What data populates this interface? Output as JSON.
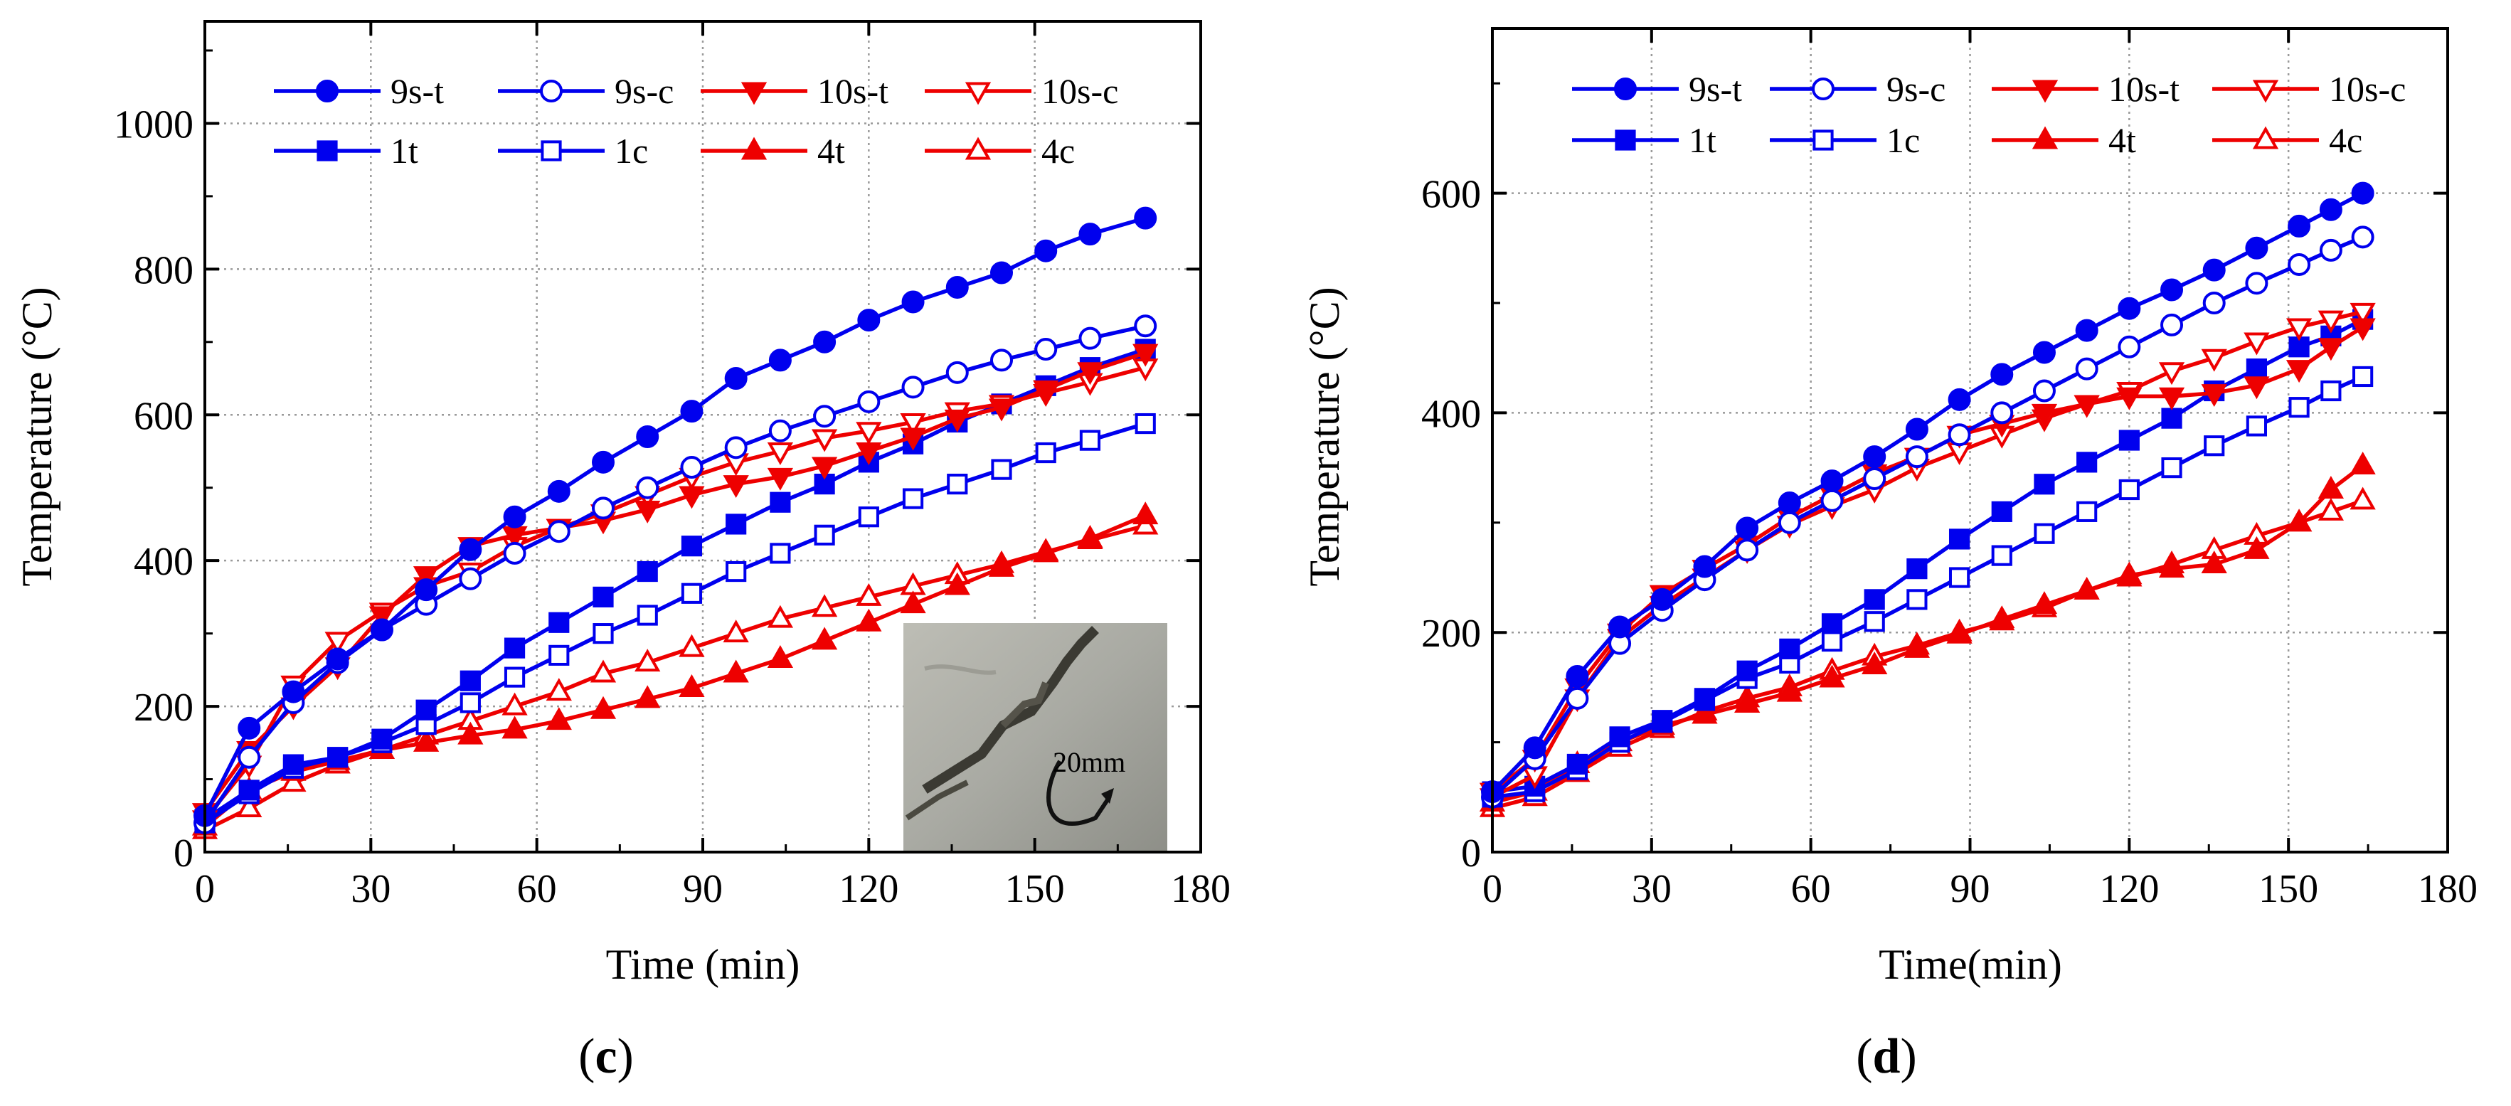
{
  "chart_data": [
    {
      "type": "line",
      "panel_label": "(c)",
      "panel_label_parts": {
        "open": "(",
        "letter": "c",
        "close": ")"
      },
      "xlabel": "Time (min)",
      "ylabel": "Temperature (°C)",
      "xlim": [
        0,
        180
      ],
      "ylim": [
        0,
        1140
      ],
      "xticks": [
        0,
        30,
        60,
        90,
        120,
        150,
        180
      ],
      "yticks": [
        0,
        200,
        400,
        600,
        800,
        1000
      ],
      "grid": true,
      "legend_position": "top",
      "inset_annotation": "20mm",
      "series": [
        {
          "name": "9s-t",
          "color": "#0000ee",
          "marker": "circle",
          "filled": true,
          "x": [
            0,
            8,
            16,
            24,
            32,
            40,
            48,
            56,
            64,
            72,
            80,
            88,
            96,
            104,
            112,
            120,
            128,
            136,
            144,
            152,
            160,
            170
          ],
          "y": [
            50,
            170,
            220,
            265,
            305,
            360,
            415,
            460,
            495,
            535,
            570,
            605,
            650,
            675,
            700,
            730,
            755,
            775,
            795,
            825,
            848,
            870
          ]
        },
        {
          "name": "9s-c",
          "color": "#0000ee",
          "marker": "circle",
          "filled": false,
          "x": [
            0,
            8,
            16,
            24,
            32,
            40,
            48,
            56,
            64,
            72,
            80,
            88,
            96,
            104,
            112,
            120,
            128,
            136,
            144,
            152,
            160,
            170
          ],
          "y": [
            40,
            130,
            205,
            260,
            305,
            340,
            375,
            410,
            440,
            472,
            500,
            528,
            555,
            578,
            598,
            618,
            638,
            658,
            675,
            690,
            705,
            722
          ]
        },
        {
          "name": "10s-t",
          "color": "#ee0000",
          "marker": "triangle-down",
          "filled": true,
          "x": [
            0,
            8,
            16,
            24,
            32,
            40,
            48,
            56,
            64,
            72,
            80,
            88,
            96,
            104,
            112,
            120,
            128,
            136,
            144,
            152,
            160,
            170
          ],
          "y": [
            55,
            140,
            200,
            255,
            325,
            380,
            420,
            435,
            445,
            455,
            470,
            490,
            505,
            515,
            530,
            550,
            570,
            595,
            610,
            635,
            660,
            685
          ]
        },
        {
          "name": "10s-c",
          "color": "#ee0000",
          "marker": "triangle-down",
          "filled": false,
          "x": [
            0,
            8,
            16,
            24,
            32,
            40,
            48,
            56,
            64,
            72,
            80,
            88,
            96,
            104,
            112,
            120,
            128,
            136,
            144,
            152,
            160,
            170
          ],
          "y": [
            45,
            120,
            230,
            290,
            330,
            365,
            385,
            420,
            445,
            465,
            490,
            515,
            535,
            550,
            568,
            578,
            590,
            605,
            615,
            630,
            645,
            665
          ]
        },
        {
          "name": "1t",
          "color": "#0000ee",
          "marker": "square",
          "filled": true,
          "x": [
            0,
            8,
            16,
            24,
            32,
            40,
            48,
            56,
            64,
            72,
            80,
            88,
            96,
            104,
            112,
            120,
            128,
            136,
            144,
            152,
            160,
            170
          ],
          "y": [
            45,
            85,
            120,
            130,
            155,
            195,
            235,
            280,
            315,
            350,
            385,
            420,
            450,
            480,
            505,
            535,
            560,
            590,
            615,
            640,
            665,
            690
          ]
        },
        {
          "name": "1c",
          "color": "#0000ee",
          "marker": "square",
          "filled": false,
          "x": [
            0,
            8,
            16,
            24,
            32,
            40,
            48,
            56,
            64,
            72,
            80,
            88,
            96,
            104,
            112,
            120,
            128,
            136,
            144,
            152,
            160,
            170
          ],
          "y": [
            40,
            80,
            115,
            130,
            150,
            175,
            205,
            240,
            270,
            300,
            325,
            355,
            385,
            410,
            435,
            460,
            485,
            505,
            525,
            548,
            565,
            588
          ]
        },
        {
          "name": "4t",
          "color": "#ee0000",
          "marker": "triangle-up",
          "filled": true,
          "x": [
            0,
            8,
            16,
            24,
            32,
            40,
            48,
            56,
            64,
            72,
            80,
            88,
            96,
            104,
            112,
            120,
            128,
            136,
            144,
            152,
            160,
            170
          ],
          "y": [
            35,
            85,
            110,
            125,
            140,
            150,
            160,
            168,
            180,
            195,
            210,
            225,
            245,
            265,
            290,
            315,
            340,
            365,
            390,
            410,
            430,
            462
          ]
        },
        {
          "name": "4c",
          "color": "#ee0000",
          "marker": "triangle-up",
          "filled": false,
          "x": [
            0,
            8,
            16,
            24,
            32,
            40,
            48,
            56,
            64,
            72,
            80,
            88,
            96,
            104,
            112,
            120,
            128,
            136,
            144,
            152,
            160,
            170
          ],
          "y": [
            30,
            60,
            95,
            120,
            140,
            160,
            180,
            200,
            220,
            245,
            260,
            280,
            300,
            320,
            335,
            350,
            365,
            380,
            395,
            412,
            428,
            448
          ]
        }
      ]
    },
    {
      "type": "line",
      "panel_label": "(d)",
      "panel_label_parts": {
        "open": "(",
        "letter": "d",
        "close": ")"
      },
      "xlabel": "Time(min)",
      "ylabel": "Temperature (°C)",
      "xlim": [
        0,
        180
      ],
      "ylim": [
        0,
        750
      ],
      "xticks": [
        0,
        30,
        60,
        90,
        120,
        150,
        180
      ],
      "yticks": [
        0,
        200,
        400,
        600
      ],
      "grid": true,
      "legend_position": "top",
      "series": [
        {
          "name": "9s-t",
          "color": "#0000ee",
          "marker": "circle",
          "filled": true,
          "x": [
            0,
            8,
            16,
            24,
            32,
            40,
            48,
            56,
            64,
            72,
            80,
            88,
            96,
            104,
            112,
            120,
            128,
            136,
            144,
            152,
            158,
            164
          ],
          "y": [
            55,
            95,
            160,
            205,
            230,
            260,
            295,
            318,
            338,
            360,
            385,
            412,
            435,
            455,
            475,
            495,
            512,
            530,
            550,
            570,
            585,
            600
          ]
        },
        {
          "name": "9s-c",
          "color": "#0000ee",
          "marker": "circle",
          "filled": false,
          "x": [
            0,
            8,
            16,
            24,
            32,
            40,
            48,
            56,
            64,
            72,
            80,
            88,
            96,
            104,
            112,
            120,
            128,
            136,
            144,
            152,
            158,
            164
          ],
          "y": [
            50,
            85,
            140,
            190,
            220,
            248,
            275,
            300,
            320,
            340,
            360,
            380,
            400,
            420,
            440,
            460,
            480,
            500,
            518,
            535,
            548,
            560
          ]
        },
        {
          "name": "10s-t",
          "color": "#ee0000",
          "marker": "triangle-down",
          "filled": true,
          "x": [
            0,
            8,
            16,
            24,
            32,
            40,
            48,
            56,
            64,
            72,
            80,
            88,
            96,
            104,
            112,
            120,
            128,
            136,
            144,
            152,
            158,
            164
          ],
          "y": [
            55,
            85,
            150,
            200,
            235,
            258,
            280,
            305,
            325,
            345,
            360,
            380,
            390,
            400,
            408,
            415,
            415,
            418,
            425,
            440,
            460,
            478
          ]
        },
        {
          "name": "10s-c",
          "color": "#ee0000",
          "marker": "triangle-down",
          "filled": false,
          "x": [
            0,
            8,
            16,
            24,
            32,
            40,
            48,
            56,
            64,
            72,
            80,
            88,
            96,
            104,
            112,
            120,
            128,
            136,
            144,
            152,
            158,
            164
          ],
          "y": [
            50,
            70,
            140,
            195,
            225,
            250,
            275,
            298,
            315,
            330,
            350,
            365,
            380,
            395,
            408,
            420,
            438,
            450,
            465,
            478,
            485,
            492
          ]
        },
        {
          "name": "1t",
          "color": "#0000ee",
          "marker": "square",
          "filled": true,
          "x": [
            0,
            8,
            16,
            24,
            32,
            40,
            48,
            56,
            64,
            72,
            80,
            88,
            96,
            104,
            112,
            120,
            128,
            136,
            144,
            152,
            158,
            164
          ],
          "y": [
            55,
            60,
            80,
            105,
            120,
            140,
            165,
            185,
            208,
            230,
            258,
            285,
            310,
            335,
            355,
            375,
            395,
            420,
            440,
            460,
            470,
            485
          ]
        },
        {
          "name": "1c",
          "color": "#0000ee",
          "marker": "square",
          "filled": false,
          "x": [
            0,
            8,
            16,
            24,
            32,
            40,
            48,
            56,
            64,
            72,
            80,
            88,
            96,
            104,
            112,
            120,
            128,
            136,
            144,
            152,
            158,
            164
          ],
          "y": [
            50,
            55,
            75,
            100,
            118,
            138,
            158,
            172,
            192,
            210,
            230,
            250,
            270,
            290,
            310,
            330,
            350,
            370,
            388,
            405,
            420,
            433
          ]
        },
        {
          "name": "4t",
          "color": "#ee0000",
          "marker": "triangle-up",
          "filled": true,
          "x": [
            0,
            8,
            16,
            24,
            32,
            40,
            48,
            56,
            64,
            72,
            80,
            88,
            96,
            104,
            112,
            120,
            128,
            136,
            144,
            152,
            158,
            164
          ],
          "y": [
            45,
            55,
            80,
            100,
            115,
            125,
            135,
            145,
            158,
            170,
            185,
            198,
            212,
            225,
            238,
            252,
            258,
            262,
            275,
            300,
            330,
            352
          ]
        },
        {
          "name": "4c",
          "color": "#ee0000",
          "marker": "triangle-up",
          "filled": false,
          "x": [
            0,
            8,
            16,
            24,
            32,
            40,
            48,
            56,
            64,
            72,
            80,
            88,
            96,
            104,
            112,
            120,
            128,
            136,
            144,
            152,
            158,
            164
          ],
          "y": [
            40,
            50,
            72,
            95,
            112,
            128,
            140,
            150,
            165,
            178,
            188,
            200,
            210,
            222,
            238,
            250,
            262,
            275,
            288,
            300,
            310,
            320
          ]
        }
      ]
    }
  ]
}
